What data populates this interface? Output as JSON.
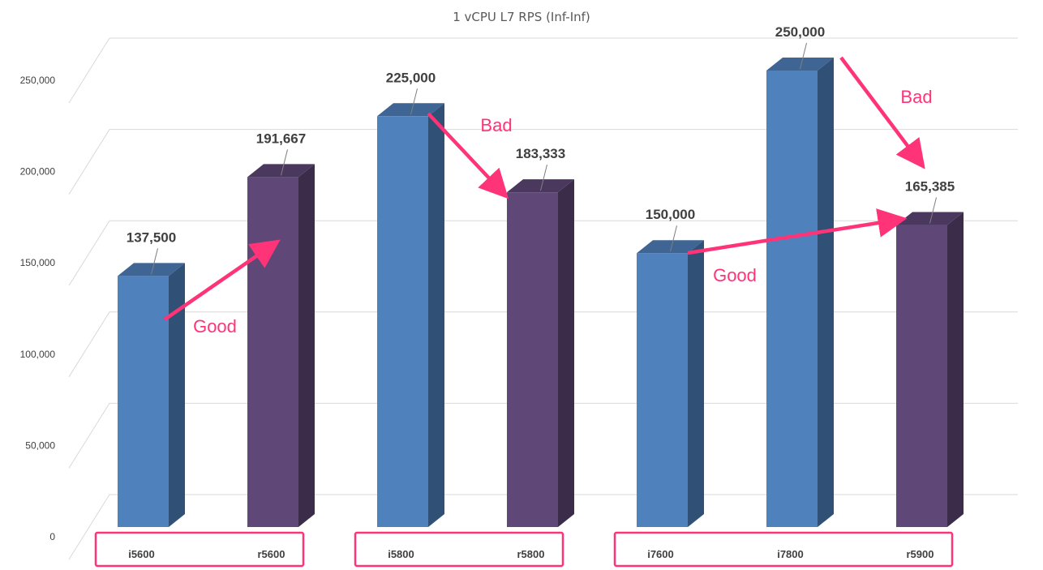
{
  "chart_data": {
    "type": "bar",
    "title": "1 vCPU L7 RPS (Inf-Inf)",
    "xlabel": "",
    "ylabel": "",
    "categories": [
      "i5600",
      "r5600",
      "i5800",
      "r5800",
      "i7600",
      "i7800",
      "r5900"
    ],
    "values": [
      137500,
      191667,
      225000,
      183333,
      150000,
      250000,
      165385
    ],
    "value_labels": [
      "137,500",
      "191,667",
      "225,000",
      "183,333",
      "150,000",
      "250,000",
      "165,385"
    ],
    "bar_series": [
      "intel",
      "amd",
      "intel",
      "amd",
      "intel",
      "intel",
      "amd"
    ],
    "ylim": [
      0,
      250000
    ],
    "yticks": [
      0,
      50000,
      100000,
      150000,
      200000,
      250000
    ],
    "ytick_labels": [
      "0",
      "50,000",
      "100,000",
      "150,000",
      "200,000",
      "250,000"
    ],
    "grid": true,
    "legend": "none",
    "style": "3d-column",
    "colors": {
      "intel": "#4f81bd",
      "amd": "#5f4878",
      "annotation": "#ff3377",
      "grid": "#d9d9d9"
    },
    "groups": [
      {
        "members": [
          "i5600",
          "r5600"
        ]
      },
      {
        "members": [
          "i5800",
          "r5800"
        ]
      },
      {
        "members": [
          "i7600",
          "i7800",
          "r5900"
        ]
      }
    ],
    "annotations": [
      {
        "text": "Good",
        "from": "i5600",
        "to": "r5600"
      },
      {
        "text": "Bad",
        "from": "i5800",
        "to": "r5800"
      },
      {
        "text": "Good",
        "from": "i7600",
        "to": "r5900"
      },
      {
        "text": "Bad",
        "from": "i7800",
        "to": "r5900"
      }
    ]
  }
}
